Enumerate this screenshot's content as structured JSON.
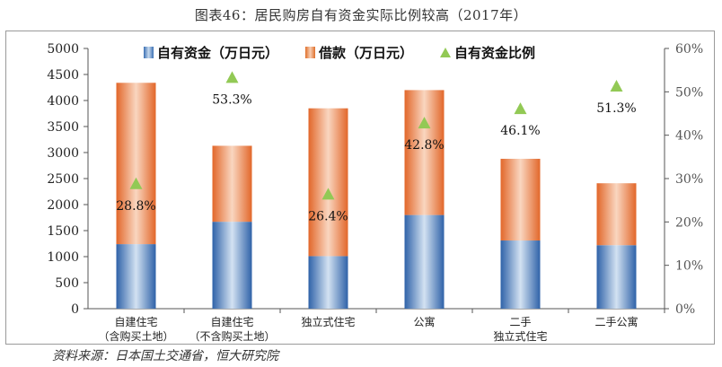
{
  "title": "图表46：居民购房自有资金实际比例较高（2017年）",
  "source": "资料来源：日本国土交通省，恒大研究院",
  "legend": {
    "own": "自有资金（万日元）",
    "loan": "借款（万日元）",
    "ratio": "自有资金比例"
  },
  "colors": {
    "own": "#3a6fb3",
    "loan": "#e06f2a",
    "ratio": "#92c955"
  },
  "chart_data": {
    "type": "bar",
    "categories": [
      [
        "自建住宅",
        "（含购买土地）"
      ],
      [
        "自建住宅",
        "（不含购买土地）"
      ],
      [
        "独立式住宅"
      ],
      [
        "公寓"
      ],
      [
        "二手",
        "独立式住宅"
      ],
      [
        "二手公寓"
      ]
    ],
    "stacked": true,
    "series": [
      {
        "name": "自有资金（万日元）",
        "values": [
          1240,
          1670,
          1010,
          1800,
          1310,
          1220
        ]
      },
      {
        "name": "借款（万日元）",
        "values": [
          3100,
          1460,
          2840,
          2400,
          1570,
          1190
        ]
      },
      {
        "name": "自有资金比例",
        "axis": "right",
        "values": [
          28.8,
          53.3,
          26.4,
          42.8,
          46.1,
          51.3
        ],
        "labels": [
          "28.8%",
          "53.3%",
          "26.4%",
          "42.8%",
          "46.1%",
          "51.3%"
        ]
      }
    ],
    "ylim": [
      0,
      5000
    ],
    "yticks": [
      0,
      500,
      1000,
      1500,
      2000,
      2500,
      3000,
      3500,
      4000,
      4500,
      5000
    ],
    "y2lim": [
      0,
      60
    ],
    "y2ticks": [
      "0%",
      "10%",
      "20%",
      "30%",
      "40%",
      "50%",
      "60%"
    ],
    "legend_position": "top"
  }
}
